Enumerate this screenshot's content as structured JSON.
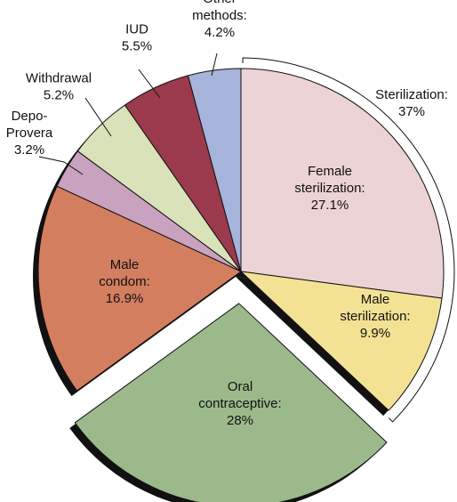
{
  "chart_data": {
    "type": "pie",
    "title": "",
    "slices": [
      {
        "label": [
          "Female",
          "sterilization:",
          "27.1%"
        ],
        "value": 27.1,
        "color": "#ecd3d5"
      },
      {
        "label": [
          "Male",
          "sterilization:",
          "9.9%"
        ],
        "value": 9.9,
        "color": "#f4e294"
      },
      {
        "label": [
          "Oral",
          "contraceptive:",
          "28%"
        ],
        "value": 28.0,
        "color": "#9cb98b",
        "exploded": true
      },
      {
        "label": [
          "Male",
          "condom:",
          "16.9%"
        ],
        "value": 16.9,
        "color": "#d47e60"
      },
      {
        "label": [
          "Depo-",
          "Provera",
          "3.2%"
        ],
        "value": 3.2,
        "color": "#c8a2bf"
      },
      {
        "label": [
          "Withdrawal",
          "5.2%"
        ],
        "value": 5.2,
        "color": "#d9e2b8"
      },
      {
        "label": [
          "IUD",
          "5.5%"
        ],
        "value": 5.5,
        "color": "#9b3a4c"
      },
      {
        "label": [
          "Other",
          "methods:",
          "4.2%"
        ],
        "value": 4.2,
        "color": "#a6b3da"
      }
    ],
    "group_annotation": {
      "label": [
        "Sterilization:",
        "37%"
      ],
      "value": 37.0,
      "members": [
        "Female sterilization",
        "Male sterilization"
      ]
    }
  }
}
